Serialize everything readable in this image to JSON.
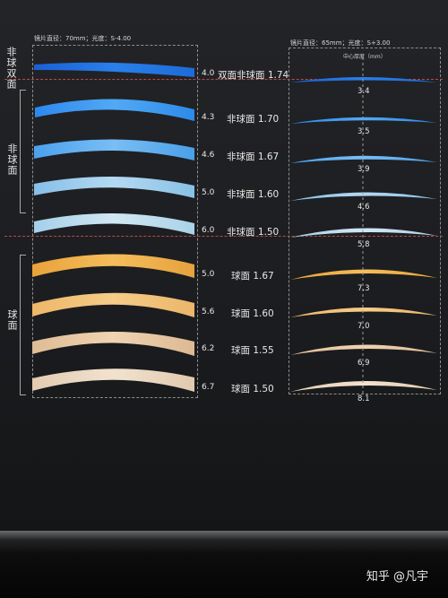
{
  "left_header": "镜片直径：70mm；光度：S-4.00",
  "right_header": "镜片直径：65mm；光度：S+3.00",
  "center_thickness_caption": "中心厚度（mm）",
  "groups": [
    "非球双面",
    "非球面",
    "球面"
  ],
  "rows": [
    {
      "edge": "4.0",
      "name": "双面非球面 1.74",
      "center": "3.4"
    },
    {
      "edge": "4.3",
      "name": "非球面 1.70",
      "center": "3.5"
    },
    {
      "edge": "4.6",
      "name": "非球面 1.67",
      "center": "3.9"
    },
    {
      "edge": "5.0",
      "name": "非球面 1.60",
      "center": "4.6"
    },
    {
      "edge": "6.0",
      "name": "非球面 1.50",
      "center": "5.8"
    },
    {
      "edge": "5.0",
      "name": "球面 1.67",
      "center": "7.3"
    },
    {
      "edge": "5.6",
      "name": "球面 1.60",
      "center": "7.0"
    },
    {
      "edge": "6.2",
      "name": "球面 1.55",
      "center": "6.9"
    },
    {
      "edge": "6.7",
      "name": "球面 1.50",
      "center": "8.1"
    }
  ],
  "watermark": "知乎 @凡宇",
  "colors": {
    "background": "#1c1d20",
    "blue_lens": "#2a80ea",
    "light_blue_lens": "#b4d9f2",
    "orange_lens": "#f5bd5b",
    "beige_lens": "#efd3b2",
    "separator": "#b84a4a"
  }
}
